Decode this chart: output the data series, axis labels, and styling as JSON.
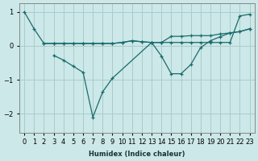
{
  "xlabel": "Humidex (Indice chaleur)",
  "background_color": "#cce8e8",
  "grid_color": "#aacccc",
  "line_color": "#1a6b6b",
  "ylim": [
    -2.55,
    1.25
  ],
  "xlim": [
    -0.5,
    23.5
  ],
  "yticks": [
    -2,
    -1,
    0,
    1
  ],
  "xticks": [
    0,
    1,
    2,
    3,
    4,
    5,
    6,
    7,
    8,
    9,
    10,
    11,
    12,
    13,
    14,
    15,
    16,
    17,
    18,
    19,
    20,
    21,
    22,
    23
  ],
  "line1_x": [
    0,
    1,
    2,
    3,
    4,
    5,
    6,
    7,
    8,
    9,
    10,
    11,
    12,
    13,
    14,
    15,
    16,
    17,
    18,
    19,
    20,
    21,
    22,
    23
  ],
  "line1_y": [
    1.0,
    0.5,
    0.07,
    0.07,
    0.07,
    0.07,
    0.07,
    0.07,
    0.07,
    0.07,
    0.1,
    0.15,
    0.12,
    0.1,
    0.1,
    0.1,
    0.1,
    0.1,
    0.1,
    0.1,
    0.1,
    0.1,
    0.88,
    0.93
  ],
  "line2_x": [
    2,
    3,
    4,
    5,
    6,
    7,
    8,
    9,
    10,
    11,
    12,
    13,
    14,
    15,
    16,
    17,
    18,
    19,
    20,
    21,
    22,
    23
  ],
  "line2_y": [
    0.07,
    0.07,
    0.07,
    0.07,
    0.07,
    0.07,
    0.07,
    0.07,
    0.1,
    0.15,
    0.12,
    0.1,
    0.1,
    0.28,
    0.28,
    0.3,
    0.3,
    0.3,
    0.35,
    0.38,
    0.42,
    0.5
  ],
  "line3_x": [
    3,
    4,
    5,
    6,
    7,
    8,
    9,
    13,
    14,
    15,
    16,
    17,
    18,
    19,
    20,
    21,
    22,
    23
  ],
  "line3_y": [
    -0.28,
    -0.42,
    -0.6,
    -0.78,
    -2.1,
    -1.35,
    -0.95,
    0.1,
    -0.3,
    -0.82,
    -0.82,
    -0.55,
    -0.05,
    0.15,
    0.27,
    0.38,
    0.42,
    0.5
  ]
}
